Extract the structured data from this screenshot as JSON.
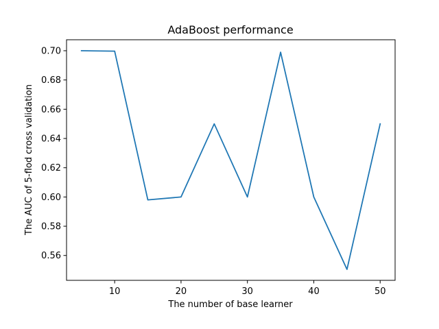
{
  "chart_data": {
    "type": "line",
    "title": "AdaBoost performance",
    "xlabel": "The number of base learner",
    "ylabel": "The AUC of 5-flod cross validation",
    "x": [
      5,
      10,
      15,
      20,
      25,
      30,
      35,
      40,
      45,
      50
    ],
    "series": [
      {
        "color": "#1f77b4",
        "values": [
          0.7,
          0.6997,
          0.598,
          0.6,
          0.65,
          0.6,
          0.699,
          0.6,
          0.5505,
          0.65
        ]
      }
    ],
    "xlim": [
      2.75,
      52.25
    ],
    "ylim": [
      0.543,
      0.7075
    ],
    "xticks": [
      10,
      20,
      30,
      40,
      50
    ],
    "yticks": [
      0.56,
      0.58,
      0.6,
      0.62,
      0.64,
      0.66,
      0.68,
      0.7
    ],
    "xtick_labels": [
      "10",
      "20",
      "30",
      "40",
      "50"
    ],
    "ytick_labels": [
      "0.56",
      "0.58",
      "0.60",
      "0.62",
      "0.64",
      "0.66",
      "0.68",
      "0.70"
    ],
    "grid": false,
    "legend": "none"
  }
}
